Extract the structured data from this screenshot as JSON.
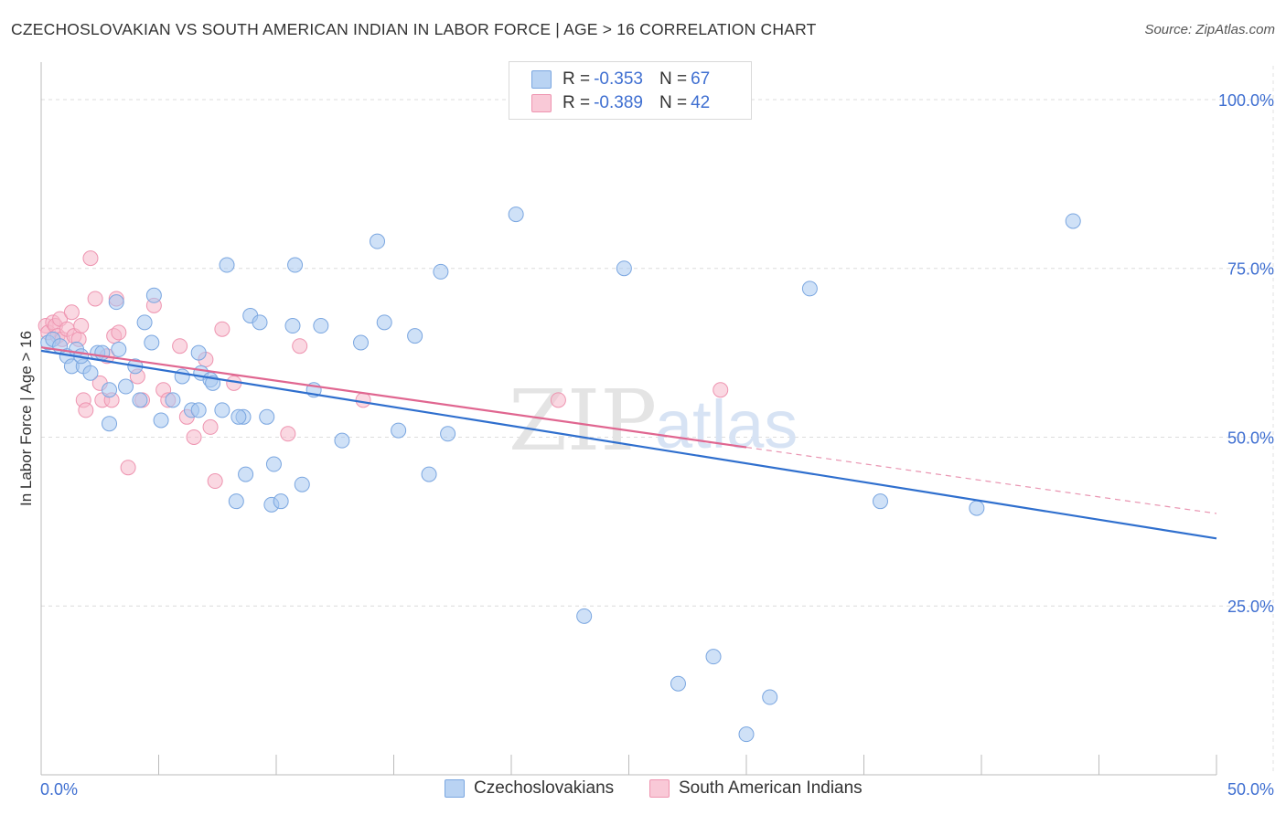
{
  "title": "CZECHOSLOVAKIAN VS SOUTH AMERICAN INDIAN IN LABOR FORCE | AGE > 16 CORRELATION CHART",
  "source": "Source: ZipAtlas.com",
  "watermark": {
    "zip": "ZIP",
    "atlas": "atlas"
  },
  "legend": {
    "rows": [
      {
        "r_label": "R = ",
        "r_value": "-0.353",
        "n_label": "N = ",
        "n_value": "67"
      },
      {
        "r_label": "R = ",
        "r_value": "-0.389",
        "n_label": "N = ",
        "n_value": "42"
      }
    ]
  },
  "colors": {
    "blue_fill": "#a8c8f0",
    "blue_stroke": "#7aa6e0",
    "blue_line": "#2f6fce",
    "pink_fill": "#f6b8cb",
    "pink_stroke": "#ee94b0",
    "pink_line": "#e06690",
    "tick_label": "#3f6fd1"
  },
  "chart_data": {
    "type": "scatter",
    "xlabel": "",
    "ylabel": "In Labor Force | Age > 16",
    "xlim": [
      0,
      50
    ],
    "ylim": [
      0,
      105
    ],
    "x_tick_labels": [
      "0.0%",
      "50.0%"
    ],
    "y_ticks": [
      25,
      50,
      75,
      100
    ],
    "y_tick_labels": [
      "25.0%",
      "50.0%",
      "75.0%",
      "100.0%"
    ],
    "grid": true,
    "legend_position": "bottom-center",
    "series": [
      {
        "name": "Czechoslovakians",
        "r": -0.353,
        "n": 67,
        "trend": {
          "x0": 0,
          "y0": 62.8,
          "x1": 50,
          "y1": 35.0
        },
        "points": [
          [
            0.3,
            64
          ],
          [
            0.5,
            64.5
          ],
          [
            0.8,
            63.5
          ],
          [
            1.1,
            62
          ],
          [
            1.3,
            60.5
          ],
          [
            1.5,
            63
          ],
          [
            1.8,
            60.5
          ],
          [
            2.1,
            59.5
          ],
          [
            2.4,
            62.5
          ],
          [
            2.6,
            62.5
          ],
          [
            2.9,
            57
          ],
          [
            3.2,
            70
          ],
          [
            3.3,
            63
          ],
          [
            3.6,
            57.5
          ],
          [
            4.0,
            60.5
          ],
          [
            4.2,
            55.5
          ],
          [
            4.4,
            67
          ],
          [
            4.7,
            64
          ],
          [
            4.8,
            71
          ],
          [
            5.6,
            55.5
          ],
          [
            5.1,
            52.5
          ],
          [
            6.0,
            59
          ],
          [
            6.4,
            54
          ],
          [
            6.7,
            62.5
          ],
          [
            6.8,
            59.5
          ],
          [
            7.2,
            58.5
          ],
          [
            7.3,
            58
          ],
          [
            7.7,
            54
          ],
          [
            7.9,
            75.5
          ],
          [
            8.3,
            40.5
          ],
          [
            8.6,
            53
          ],
          [
            8.7,
            44.5
          ],
          [
            8.9,
            68
          ],
          [
            9.3,
            67
          ],
          [
            9.6,
            53
          ],
          [
            9.8,
            40
          ],
          [
            9.9,
            46
          ],
          [
            10.2,
            40.5
          ],
          [
            10.7,
            66.5
          ],
          [
            10.8,
            75.5
          ],
          [
            11.1,
            43
          ],
          [
            11.6,
            57
          ],
          [
            11.9,
            66.5
          ],
          [
            12.8,
            49.5
          ],
          [
            13.6,
            64
          ],
          [
            14.3,
            79
          ],
          [
            14.6,
            67
          ],
          [
            15.2,
            51
          ],
          [
            15.9,
            65
          ],
          [
            16.5,
            44.5
          ],
          [
            17.0,
            74.5
          ],
          [
            17.3,
            50.5
          ],
          [
            20.2,
            83
          ],
          [
            23.1,
            23.5
          ],
          [
            24.8,
            75
          ],
          [
            27.1,
            13.5
          ],
          [
            28.6,
            17.5
          ],
          [
            30.0,
            6
          ],
          [
            31.0,
            11.5
          ],
          [
            32.7,
            72
          ],
          [
            35.7,
            40.5
          ],
          [
            39.8,
            39.5
          ],
          [
            43.9,
            82
          ],
          [
            1.7,
            62
          ],
          [
            2.9,
            52
          ],
          [
            6.7,
            54
          ],
          [
            8.4,
            53
          ]
        ]
      },
      {
        "name": "South American Indians",
        "r": -0.389,
        "n": 42,
        "trend": {
          "x0": 0,
          "y0": 63.3,
          "x1": 30,
          "y1": 48.5,
          "x_dash_end": 50,
          "y_dash_end": 38.7
        },
        "points": [
          [
            0.2,
            66.5
          ],
          [
            0.3,
            65.5
          ],
          [
            0.5,
            67
          ],
          [
            0.6,
            66.5
          ],
          [
            0.7,
            65
          ],
          [
            0.8,
            67.5
          ],
          [
            0.9,
            64.5
          ],
          [
            1.1,
            66
          ],
          [
            1.3,
            68.5
          ],
          [
            1.4,
            65
          ],
          [
            1.6,
            64.5
          ],
          [
            1.7,
            66.5
          ],
          [
            1.8,
            55.5
          ],
          [
            1.9,
            54
          ],
          [
            2.1,
            76.5
          ],
          [
            2.3,
            70.5
          ],
          [
            2.5,
            58
          ],
          [
            2.6,
            55.5
          ],
          [
            2.8,
            62
          ],
          [
            3.0,
            55.5
          ],
          [
            3.1,
            65
          ],
          [
            3.2,
            70.5
          ],
          [
            3.3,
            65.5
          ],
          [
            3.7,
            45.5
          ],
          [
            4.1,
            59
          ],
          [
            4.3,
            55.5
          ],
          [
            4.8,
            69.5
          ],
          [
            5.2,
            57
          ],
          [
            5.4,
            55.5
          ],
          [
            5.9,
            63.5
          ],
          [
            6.2,
            53
          ],
          [
            6.5,
            50
          ],
          [
            7.0,
            61.5
          ],
          [
            7.2,
            51.5
          ],
          [
            7.4,
            43.5
          ],
          [
            7.7,
            66
          ],
          [
            8.2,
            58
          ],
          [
            10.5,
            50.5
          ],
          [
            11.0,
            63.5
          ],
          [
            13.7,
            55.5
          ],
          [
            22.0,
            55.5
          ],
          [
            28.9,
            57
          ]
        ]
      }
    ]
  }
}
